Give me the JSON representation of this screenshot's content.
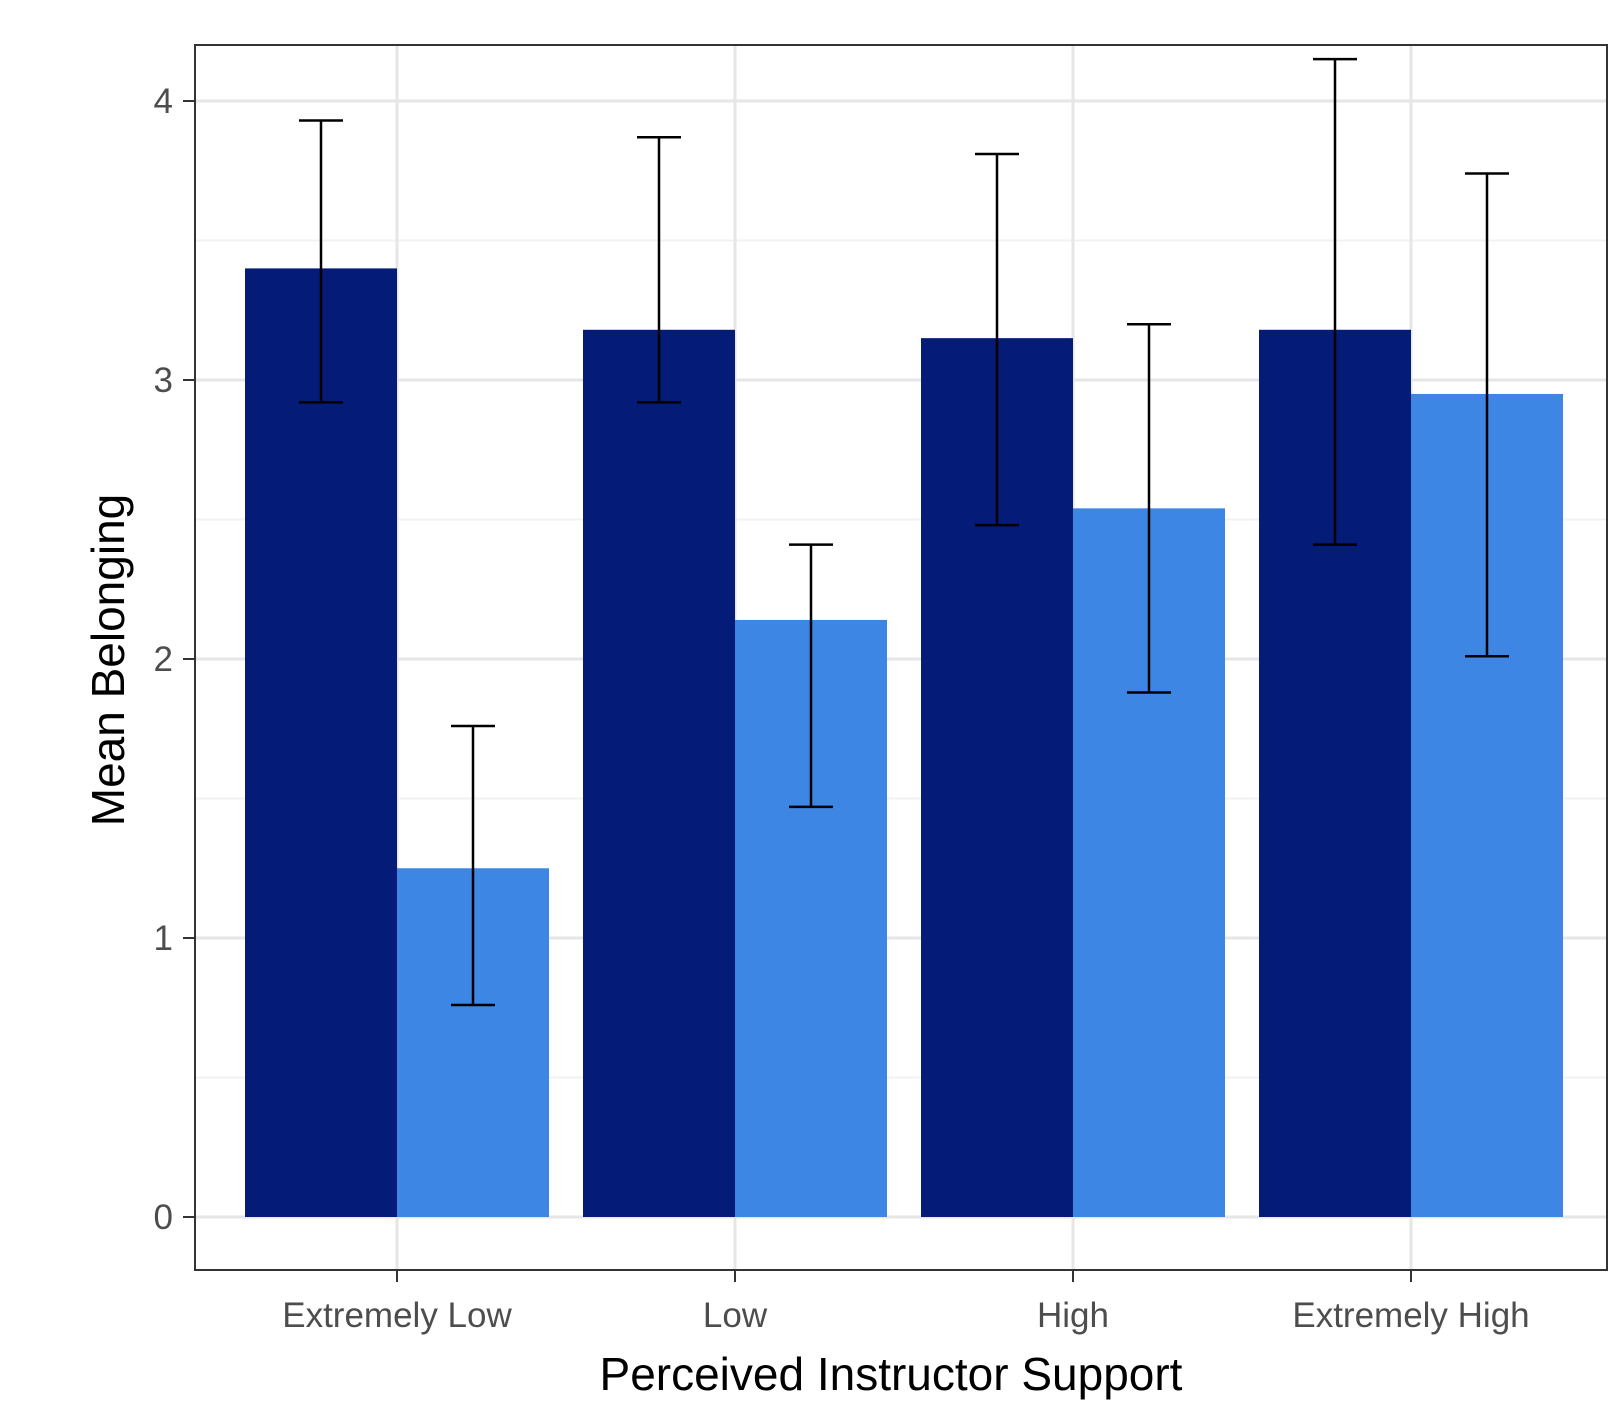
{
  "chart_data": {
    "type": "bar",
    "title": "",
    "xlabel": "Perceived Instructor Support",
    "ylabel": "Mean Belonging",
    "categories": [
      "Extremely Low",
      "Low",
      "High",
      "Extremely High"
    ],
    "yticks": [
      "0",
      "1",
      "2",
      "3",
      "4"
    ],
    "ylim": [
      -0.19,
      4.2
    ],
    "grid": true,
    "legend": "none",
    "series": [
      {
        "color": "#041b78",
        "values": [
          3.4,
          3.18,
          3.15,
          3.18
        ],
        "error_low": [
          2.92,
          2.92,
          2.48,
          2.41
        ],
        "error_high": [
          3.93,
          3.87,
          3.81,
          4.15
        ]
      },
      {
        "color": "#3e86e4",
        "values": [
          1.25,
          2.14,
          2.54,
          2.95
        ],
        "error_low": [
          0.76,
          1.47,
          1.88,
          2.01
        ],
        "error_high": [
          1.76,
          2.41,
          3.2,
          3.74
        ]
      }
    ]
  },
  "colors": {
    "panel_border": "#333333",
    "grid_major": "#e6e6e6",
    "grid_minor": "#f2f2f2",
    "error_bar": "#000000"
  }
}
